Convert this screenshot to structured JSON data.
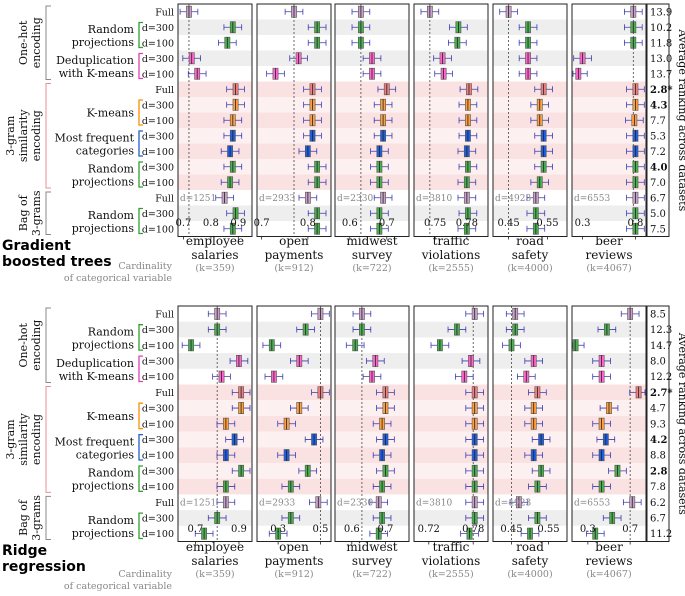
{
  "chart_data": [
    {
      "type": "boxplot",
      "title": "Gradient boosted trees",
      "xlabel_note": "Cardinality of categorical variable",
      "ylabel": "Average ranking across datasets",
      "rows": [
        {
          "group": "One-hot encoding",
          "method": "",
          "label": "Full",
          "color": "#c9a0c9",
          "rank": "13.9",
          "bold": false
        },
        {
          "group": "One-hot encoding",
          "method": "Random projections",
          "label": "d=300",
          "color": "#4caf50",
          "rank": "10.2",
          "bold": false
        },
        {
          "group": "One-hot encoding",
          "method": "Random projections",
          "label": "d=100",
          "color": "#4caf50",
          "rank": "11.8",
          "bold": false
        },
        {
          "group": "One-hot encoding",
          "method": "Deduplication with K-means",
          "label": "d=300",
          "color": "#ff66cc",
          "rank": "13.0",
          "bold": false
        },
        {
          "group": "One-hot encoding",
          "method": "Deduplication with K-means",
          "label": "d=100",
          "color": "#ff66cc",
          "rank": "13.7",
          "bold": false
        },
        {
          "group": "3-gram similarity encoding",
          "method": "",
          "label": "Full",
          "color": "#f08080",
          "rank": "2.8*",
          "bold": true
        },
        {
          "group": "3-gram similarity encoding",
          "method": "K-means",
          "label": "d=300",
          "color": "#ffa040",
          "rank": "4.3",
          "bold": true
        },
        {
          "group": "3-gram similarity encoding",
          "method": "K-means",
          "label": "d=100",
          "color": "#ffa040",
          "rank": "7.7",
          "bold": false
        },
        {
          "group": "3-gram similarity encoding",
          "method": "Most frequent categories",
          "label": "d=300",
          "color": "#2060e0",
          "rank": "5.3",
          "bold": false
        },
        {
          "group": "3-gram similarity encoding",
          "method": "Most frequent categories",
          "label": "d=100",
          "color": "#2060e0",
          "rank": "7.2",
          "bold": false
        },
        {
          "group": "3-gram similarity encoding",
          "method": "Random projections",
          "label": "d=300",
          "color": "#4caf50",
          "rank": "4.0",
          "bold": true
        },
        {
          "group": "3-gram similarity encoding",
          "method": "Random projections",
          "label": "d=100",
          "color": "#4caf50",
          "rank": "7.0",
          "bold": false
        },
        {
          "group": "Bag of 3-grams",
          "method": "",
          "label": "Full",
          "color": "#c9a0c9",
          "rank": "6.7",
          "bold": false
        },
        {
          "group": "Bag of 3-grams",
          "method": "Random projections",
          "label": "d=300",
          "color": "#4caf50",
          "rank": "5.0",
          "bold": false
        },
        {
          "group": "Bag of 3-grams",
          "method": "Random projections",
          "label": "d=100",
          "color": "#4caf50",
          "rank": "7.5",
          "bold": false
        }
      ],
      "datasets": [
        {
          "name": "employee salaries",
          "k": "(k=359)",
          "ticks": [
            "0.7",
            "0.8",
            "0.9"
          ],
          "xlim": [
            0.68,
            0.95
          ],
          "ref": 0.72,
          "d_full": "d=1251",
          "med": [
            0.72,
            0.88,
            0.86,
            0.73,
            0.75,
            0.89,
            0.89,
            0.88,
            0.88,
            0.87,
            0.88,
            0.87,
            0.85,
            0.89,
            0.88
          ]
        },
        {
          "name": "open payments",
          "k": "(k=912)",
          "ticks": [
            "0.7",
            "0.8"
          ],
          "xlim": [
            0.69,
            0.85
          ],
          "ref": 0.77,
          "d_full": "d=2933",
          "med": [
            0.77,
            0.82,
            0.82,
            0.78,
            0.73,
            0.81,
            0.81,
            0.81,
            0.81,
            0.8,
            0.82,
            0.82,
            0.8,
            0.82,
            0.82
          ]
        },
        {
          "name": "midwest survey",
          "k": "(k=722)",
          "ticks": [
            "0.6",
            "0.7"
          ],
          "xlim": [
            0.56,
            0.76
          ],
          "ref": 0.63,
          "d_full": "d=2330",
          "med": [
            0.63,
            0.63,
            0.63,
            0.66,
            0.66,
            0.7,
            0.69,
            0.69,
            0.69,
            0.68,
            0.68,
            0.68,
            0.69,
            0.68,
            0.68
          ]
        },
        {
          "name": "traffic violations",
          "k": "(k=2555)",
          "ticks": [
            "0.75",
            "0.78"
          ],
          "xlim": [
            0.73,
            0.8
          ],
          "ref": 0.745,
          "d_full": "d=3810",
          "med": [
            0.745,
            0.772,
            0.771,
            0.757,
            0.758,
            0.782,
            0.781,
            0.781,
            0.781,
            0.78,
            0.781,
            0.78,
            0.78,
            0.781,
            0.78
          ]
        },
        {
          "name": "road safety",
          "k": "(k=4000)",
          "ticks": [
            "0.45",
            "0.55"
          ],
          "xlim": [
            0.41,
            0.6
          ],
          "ref": 0.45,
          "d_full": "d=4923",
          "med": [
            0.45,
            0.5,
            0.5,
            0.5,
            0.5,
            0.54,
            0.53,
            0.53,
            0.54,
            0.54,
            0.54,
            0.53,
            0.52,
            0.52,
            0.52
          ]
        },
        {
          "name": "beer reviews",
          "k": "(k=4067)",
          "ticks": [
            "0.3",
            "0.8"
          ],
          "xlim": [
            0.2,
            0.9
          ],
          "ref": 0.78,
          "d_full": "d=6553",
          "med": [
            0.78,
            0.78,
            0.78,
            0.3,
            0.26,
            0.8,
            0.8,
            0.79,
            0.8,
            0.8,
            0.8,
            0.8,
            0.8,
            0.8,
            0.8
          ]
        }
      ]
    },
    {
      "type": "boxplot",
      "title": "Ridge regression",
      "xlabel_note": "Cardinality of categorical variable",
      "ylabel": "Average ranking across datasets",
      "rows": [
        {
          "group": "One-hot encoding",
          "method": "",
          "label": "Full",
          "color": "#c9a0c9",
          "rank": "8.5",
          "bold": false
        },
        {
          "group": "One-hot encoding",
          "method": "Random projections",
          "label": "d=300",
          "color": "#4caf50",
          "rank": "12.3",
          "bold": false
        },
        {
          "group": "One-hot encoding",
          "method": "Random projections",
          "label": "d=100",
          "color": "#4caf50",
          "rank": "14.7",
          "bold": false
        },
        {
          "group": "One-hot encoding",
          "method": "Deduplication with K-means",
          "label": "d=300",
          "color": "#ff66cc",
          "rank": "8.0",
          "bold": false
        },
        {
          "group": "One-hot encoding",
          "method": "Deduplication with K-means",
          "label": "d=100",
          "color": "#ff66cc",
          "rank": "12.2",
          "bold": false
        },
        {
          "group": "3-gram similarity encoding",
          "method": "",
          "label": "Full",
          "color": "#f08080",
          "rank": "2.7*",
          "bold": true
        },
        {
          "group": "3-gram similarity encoding",
          "method": "K-means",
          "label": "d=300",
          "color": "#ffa040",
          "rank": "4.7",
          "bold": false
        },
        {
          "group": "3-gram similarity encoding",
          "method": "K-means",
          "label": "d=100",
          "color": "#ffa040",
          "rank": "9.3",
          "bold": false
        },
        {
          "group": "3-gram similarity encoding",
          "method": "Most frequent categories",
          "label": "d=300",
          "color": "#2060e0",
          "rank": "4.2",
          "bold": true
        },
        {
          "group": "3-gram similarity encoding",
          "method": "Most frequent categories",
          "label": "d=100",
          "color": "#2060e0",
          "rank": "8.8",
          "bold": false
        },
        {
          "group": "3-gram similarity encoding",
          "method": "Random projections",
          "label": "d=300",
          "color": "#4caf50",
          "rank": "2.8",
          "bold": true
        },
        {
          "group": "3-gram similarity encoding",
          "method": "Random projections",
          "label": "d=100",
          "color": "#4caf50",
          "rank": "7.8",
          "bold": false
        },
        {
          "group": "Bag of 3-grams",
          "method": "",
          "label": "Full",
          "color": "#c9a0c9",
          "rank": "6.2",
          "bold": false
        },
        {
          "group": "Bag of 3-grams",
          "method": "Random projections",
          "label": "d=300",
          "color": "#4caf50",
          "rank": "6.7",
          "bold": false
        },
        {
          "group": "Bag of 3-grams",
          "method": "Random projections",
          "label": "d=100",
          "color": "#4caf50",
          "rank": "11.2",
          "bold": false
        }
      ],
      "datasets": [
        {
          "name": "employee salaries",
          "k": "(k=359)",
          "ticks": [
            "0.7",
            "0.9"
          ],
          "xlim": [
            0.62,
            0.96
          ],
          "ref": 0.8,
          "d_full": "d=1251",
          "med": [
            0.8,
            0.8,
            0.68,
            0.9,
            0.82,
            0.91,
            0.91,
            0.84,
            0.88,
            0.84,
            0.91,
            0.84,
            0.84,
            0.8,
            0.74
          ]
        },
        {
          "name": "open payments",
          "k": "(k=912)",
          "ticks": [
            "0.3",
            "0.5"
          ],
          "xlim": [
            0.2,
            0.55
          ],
          "ref": 0.5,
          "d_full": "d=2933",
          "med": [
            0.5,
            0.43,
            0.27,
            0.4,
            0.28,
            0.5,
            0.4,
            0.34,
            0.47,
            0.34,
            0.44,
            0.36,
            0.49,
            0.36,
            0.3
          ]
        },
        {
          "name": "midwest survey",
          "k": "(k=722)",
          "ticks": [
            "0.6",
            "0.7"
          ],
          "xlim": [
            0.55,
            0.77
          ],
          "ref": 0.63,
          "d_full": "d=2330",
          "med": [
            0.63,
            0.63,
            0.61,
            0.67,
            0.66,
            0.7,
            0.7,
            0.69,
            0.7,
            0.69,
            0.7,
            0.69,
            0.68,
            0.69,
            0.68
          ]
        },
        {
          "name": "traffic violations",
          "k": "(k=2555)",
          "ticks": [
            "0.72",
            "0.78"
          ],
          "xlim": [
            0.7,
            0.8
          ],
          "ref": 0.78,
          "d_full": "d=3810",
          "med": [
            0.782,
            0.758,
            0.735,
            0.777,
            0.768,
            0.782,
            0.782,
            0.782,
            0.782,
            0.782,
            0.782,
            0.782,
            0.782,
            0.782,
            0.775
          ]
        },
        {
          "name": "road safety",
          "k": "(k=4000)",
          "ticks": [
            "0.45",
            "0.55"
          ],
          "xlim": [
            0.4,
            0.6
          ],
          "ref": 0.45,
          "d_full": "d=4923",
          "med": [
            0.46,
            0.46,
            0.45,
            0.51,
            0.49,
            0.52,
            0.51,
            0.51,
            0.53,
            0.51,
            0.53,
            0.52,
            0.47,
            0.52,
            0.5
          ]
        },
        {
          "name": "beer reviews",
          "k": "(k=4067)",
          "ticks": [
            "0.3",
            "0.7"
          ],
          "xlim": [
            0.15,
            0.85
          ],
          "ref": 0.7,
          "d_full": "d=6553",
          "med": [
            0.7,
            0.48,
            0.18,
            0.43,
            0.43,
            0.78,
            0.5,
            0.43,
            0.47,
            0.43,
            0.58,
            0.43,
            0.72,
            0.53,
            0.37
          ]
        }
      ]
    }
  ]
}
